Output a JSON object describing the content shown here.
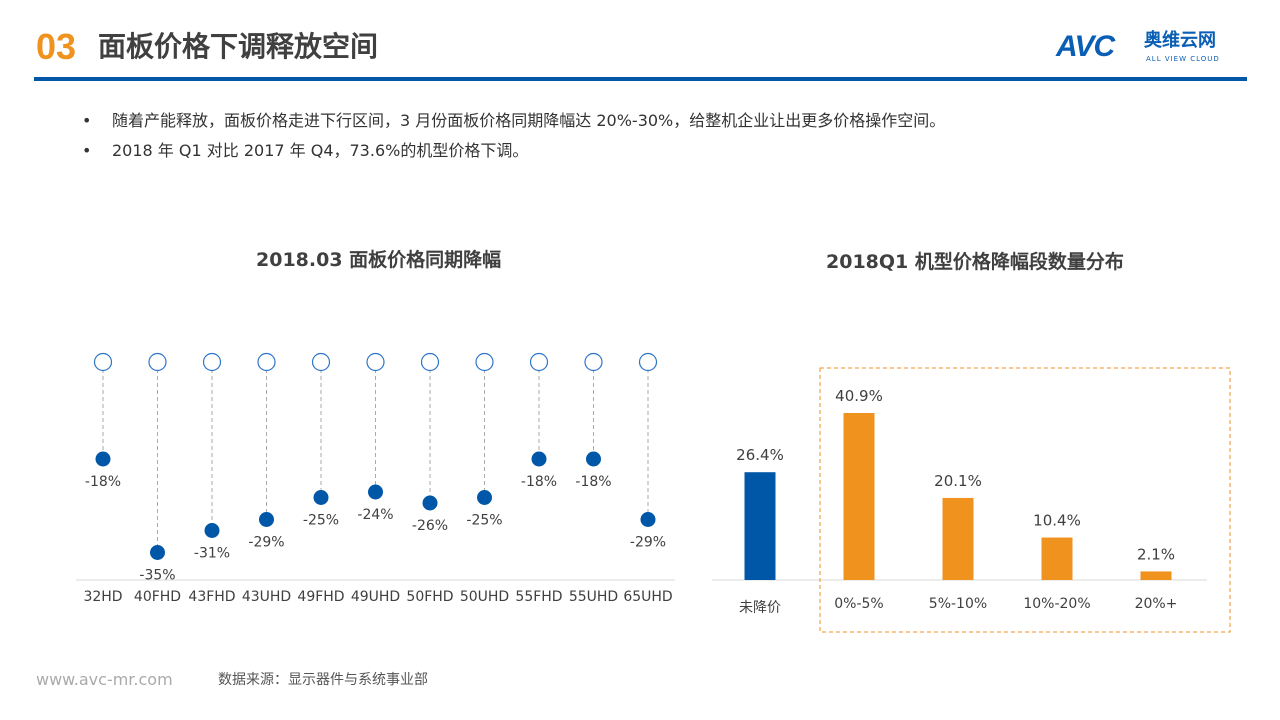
{
  "header": {
    "section_number": "03",
    "title": "面板价格下调释放空间",
    "logo": {
      "mark": "AVC",
      "name_cn": "奥维云网",
      "name_en": "ALL VIEW CLOUD"
    }
  },
  "bullets": [
    "随着产能释放，面板价格走进下行区间，3 月份面板价格同期降幅达 20%-30%，给整机企业让出更多价格操作空间。",
    "2018 年 Q1 对比 2017 年 Q4，73.6%的机型价格下调。"
  ],
  "colors": {
    "accent": "#f0921e",
    "brand": "#0057a8",
    "orange_bar": "#f0921e",
    "blue_bar": "#0057a8"
  },
  "chart_data": [
    {
      "type": "scatter",
      "title": "2018.03 面板价格同期降幅",
      "categories": [
        "32HD",
        "40FHD",
        "43FHD",
        "43UHD",
        "49FHD",
        "49UHD",
        "50FHD",
        "50UHD",
        "55FHD",
        "55UHD",
        "65UHD"
      ],
      "values": [
        -18,
        -35,
        -31,
        -29,
        -25,
        -24,
        -26,
        -25,
        -18,
        -18,
        -29
      ],
      "labels": [
        "-18%",
        "-35%",
        "-31%",
        "-29%",
        "-25%",
        "-24%",
        "-26%",
        "-25%",
        "-18%",
        "-18%",
        "-29%"
      ],
      "ylim": [
        -40,
        0
      ],
      "grid": false
    },
    {
      "type": "bar",
      "title": "2018Q1 机型价格降幅段数量分布",
      "categories": [
        "未降价",
        "0%-5%",
        "5%-10%",
        "10%-20%",
        "20%+"
      ],
      "values": [
        26.4,
        40.9,
        20.1,
        10.4,
        2.1
      ],
      "labels": [
        "26.4%",
        "40.9%",
        "20.1%",
        "10.4%",
        "2.1%"
      ],
      "ylim": [
        0,
        45
      ],
      "grid": false
    }
  ],
  "footer": {
    "url": "www.avc-mr.com",
    "source": "数据来源：显示器件与系统事业部"
  }
}
